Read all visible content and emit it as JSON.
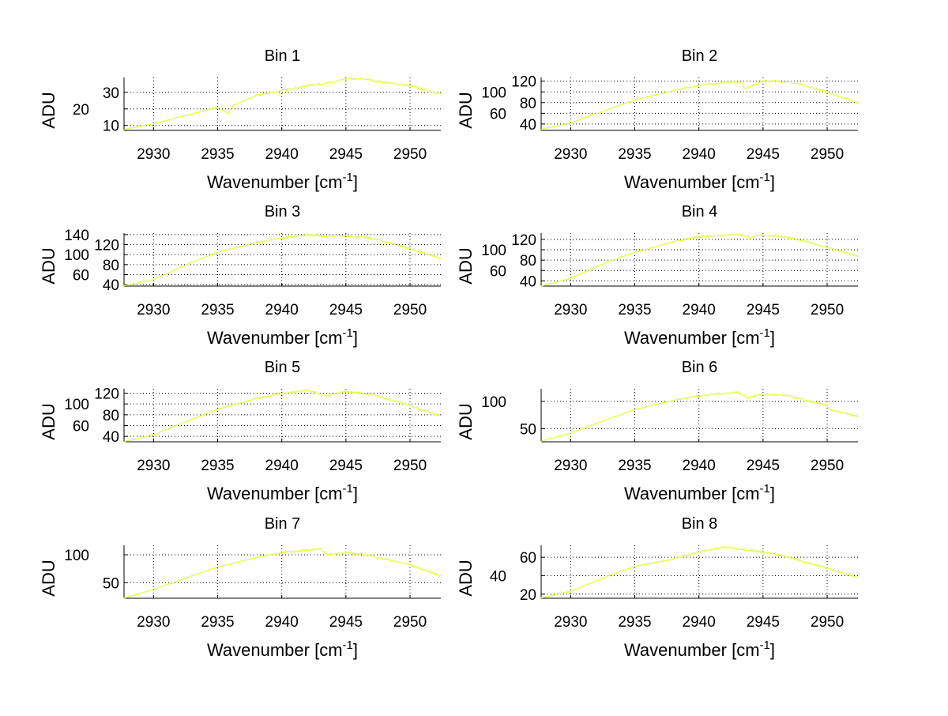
{
  "chart_data": [
    {
      "type": "line",
      "title": "Bin 1",
      "xlabel": "Wavenumber [cm",
      "xlabel_sup": "-1",
      "xlabel_end": "]",
      "ylabel": "ADU",
      "xlim": [
        2927.7,
        2952.4
      ],
      "ylim": [
        7,
        39
      ],
      "xticks": [
        2930,
        2935,
        2940,
        2945,
        2950
      ],
      "yticks": [
        10,
        20,
        30
      ],
      "grid": true,
      "line_color": "#e4ff3c",
      "x": [
        2927.7,
        2930,
        2933,
        2935,
        2935.8,
        2936.2,
        2938,
        2940,
        2942,
        2944,
        2945,
        2946.5,
        2948,
        2950,
        2952.4
      ],
      "y": [
        7.5,
        11,
        17,
        21,
        17,
        22,
        28,
        31,
        34,
        36,
        38,
        38,
        36,
        34,
        29
      ]
    },
    {
      "type": "line",
      "title": "Bin 2",
      "xlabel": "Wavenumber [cm",
      "xlabel_sup": "-1",
      "xlabel_end": "]",
      "ylabel": "ADU",
      "xlim": [
        2927.7,
        2952.4
      ],
      "ylim": [
        28,
        127
      ],
      "xticks": [
        2930,
        2935,
        2940,
        2945,
        2950
      ],
      "yticks": [
        40,
        60,
        80,
        100,
        120
      ],
      "grid": true,
      "line_color": "#e4ff3c",
      "x": [
        2927.7,
        2930,
        2933,
        2935,
        2938,
        2940,
        2942,
        2943.3,
        2943.6,
        2945,
        2947,
        2950,
        2952.4
      ],
      "y": [
        30,
        42,
        68,
        85,
        102,
        112,
        118,
        118,
        105,
        121,
        119,
        100,
        80
      ]
    },
    {
      "type": "line",
      "title": "Bin 3",
      "xlabel": "Wavenumber [cm",
      "xlabel_sup": "-1",
      "xlabel_end": "]",
      "ylabel": "ADU",
      "xlim": [
        2927.7,
        2952.4
      ],
      "ylim": [
        37,
        143
      ],
      "xticks": [
        2930,
        2935,
        2940,
        2945,
        2950
      ],
      "yticks": [
        40,
        60,
        80,
        100,
        120,
        140
      ],
      "grid": true,
      "line_color": "#e4ff3c",
      "x": [
        2927.7,
        2930,
        2933,
        2935,
        2938,
        2940,
        2942,
        2943.5,
        2945,
        2947,
        2950,
        2952.4
      ],
      "y": [
        38,
        50,
        85,
        105,
        124,
        133,
        140,
        136,
        138,
        133,
        112,
        92
      ]
    },
    {
      "type": "line",
      "title": "Bin 4",
      "xlabel": "Wavenumber [cm",
      "xlabel_sup": "-1",
      "xlabel_end": "]",
      "ylabel": "ADU",
      "xlim": [
        2927.7,
        2952.4
      ],
      "ylim": [
        30,
        132
      ],
      "xticks": [
        2930,
        2935,
        2940,
        2945,
        2950
      ],
      "yticks": [
        40,
        60,
        80,
        100,
        120
      ],
      "grid": true,
      "line_color": "#e4ff3c",
      "x": [
        2927.7,
        2930,
        2933,
        2935,
        2938,
        2940,
        2943,
        2944,
        2945,
        2947,
        2950,
        2952.4
      ],
      "y": [
        30,
        45,
        78,
        95,
        115,
        125,
        130,
        124,
        128,
        124,
        105,
        87
      ]
    },
    {
      "type": "line",
      "title": "Bin 5",
      "xlabel": "Wavenumber [cm",
      "xlabel_sup": "-1",
      "xlabel_end": "]",
      "ylabel": "ADU",
      "xlim": [
        2927.7,
        2952.4
      ],
      "ylim": [
        30,
        128
      ],
      "xticks": [
        2930,
        2935,
        2940,
        2945,
        2950
      ],
      "yticks": [
        40,
        60,
        80,
        100,
        120
      ],
      "grid": true,
      "line_color": "#e4ff3c",
      "x": [
        2927.7,
        2930,
        2933,
        2935,
        2938,
        2940,
        2942,
        2943.5,
        2945,
        2947,
        2950,
        2952.4
      ],
      "y": [
        30,
        43,
        72,
        90,
        110,
        120,
        125,
        115,
        123,
        118,
        97,
        78
      ]
    },
    {
      "type": "line",
      "title": "Bin 6",
      "xlabel": "Wavenumber [cm",
      "xlabel_sup": "-1",
      "xlabel_end": "]",
      "ylabel": "ADU",
      "xlim": [
        2927.7,
        2952.4
      ],
      "ylim": [
        26,
        123
      ],
      "xticks": [
        2930,
        2935,
        2940,
        2945,
        2950
      ],
      "yticks": [
        50,
        100
      ],
      "grid": true,
      "line_color": "#e4ff3c",
      "x": [
        2927.7,
        2930,
        2933,
        2935,
        2938,
        2940,
        2943,
        2943.8,
        2945,
        2947,
        2950,
        2950.3,
        2952.4
      ],
      "y": [
        27,
        42,
        68,
        85,
        102,
        110,
        117,
        107,
        113,
        110,
        92,
        84,
        72
      ]
    },
    {
      "type": "line",
      "title": "Bin 7",
      "xlabel": "Wavenumber [cm",
      "xlabel_sup": "-1",
      "xlabel_end": "]",
      "ylabel": "ADU",
      "xlim": [
        2927.7,
        2952.4
      ],
      "ylim": [
        22,
        117
      ],
      "xticks": [
        2930,
        2935,
        2940,
        2945,
        2950
      ],
      "yticks": [
        50,
        100
      ],
      "grid": true,
      "line_color": "#e4ff3c",
      "x": [
        2927.7,
        2930,
        2933,
        2935,
        2938,
        2940,
        2943,
        2943.6,
        2945,
        2947,
        2950,
        2952.4
      ],
      "y": [
        22,
        38,
        62,
        78,
        95,
        104,
        110,
        100,
        104,
        98,
        82,
        62
      ]
    },
    {
      "type": "line",
      "title": "Bin 8",
      "xlabel": "Wavenumber [cm",
      "xlabel_sup": "-1",
      "xlabel_end": "]",
      "ylabel": "ADU",
      "xlim": [
        2927.7,
        2952.4
      ],
      "ylim": [
        15.5,
        73
      ],
      "xticks": [
        2930,
        2935,
        2940,
        2945,
        2950
      ],
      "yticks": [
        20,
        40,
        60
      ],
      "grid": true,
      "line_color": "#e4ff3c",
      "x": [
        2927.7,
        2930,
        2933,
        2935,
        2938,
        2940,
        2942,
        2945,
        2947,
        2950,
        2952.4
      ],
      "y": [
        16,
        23,
        40,
        50,
        58,
        66,
        71,
        66,
        60,
        48,
        38
      ]
    }
  ]
}
